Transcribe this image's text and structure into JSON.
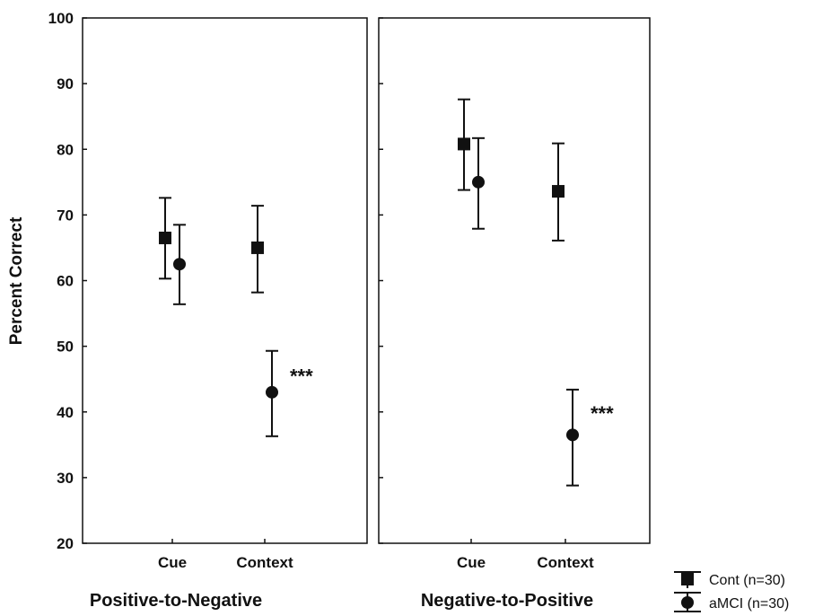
{
  "chart_data": {
    "type": "scatter",
    "ylabel": "Percent Correct",
    "ylim": [
      20,
      100
    ],
    "yticks": [
      20,
      30,
      40,
      50,
      60,
      70,
      80,
      90,
      100
    ],
    "legend": {
      "placement": "bottom-right",
      "entries": [
        {
          "name": "Cont (n=30)",
          "marker": "square"
        },
        {
          "name": "aMCI (n=30)",
          "marker": "circle"
        }
      ]
    },
    "panels": [
      {
        "title": "Positive-to-Negative",
        "categories": [
          "Cue",
          "Context"
        ],
        "series": [
          {
            "name": "Cont (n=30)",
            "marker": "square",
            "values": [
              66.5,
              65.0
            ],
            "err_low": [
              60.3,
              58.2
            ],
            "err_high": [
              72.6,
              71.4
            ]
          },
          {
            "name": "aMCI (n=30)",
            "marker": "circle",
            "values": [
              62.5,
              43.0
            ],
            "err_low": [
              56.4,
              36.3
            ],
            "err_high": [
              68.5,
              49.3
            ]
          }
        ],
        "annotations": [
          {
            "text": "***",
            "category": "Context",
            "y": 45.5
          }
        ]
      },
      {
        "title": "Negative-to-Positive",
        "categories": [
          "Cue",
          "Context"
        ],
        "series": [
          {
            "name": "Cont (n=30)",
            "marker": "square",
            "values": [
              80.8,
              73.6
            ],
            "err_low": [
              73.8,
              66.1
            ],
            "err_high": [
              87.6,
              80.9
            ]
          },
          {
            "name": "aMCI (n=30)",
            "marker": "circle",
            "values": [
              75.0,
              36.5
            ],
            "err_low": [
              67.9,
              28.8
            ],
            "err_high": [
              81.7,
              43.4
            ]
          }
        ],
        "annotations": [
          {
            "text": "***",
            "category": "Context",
            "y": 39.8
          }
        ]
      }
    ]
  }
}
